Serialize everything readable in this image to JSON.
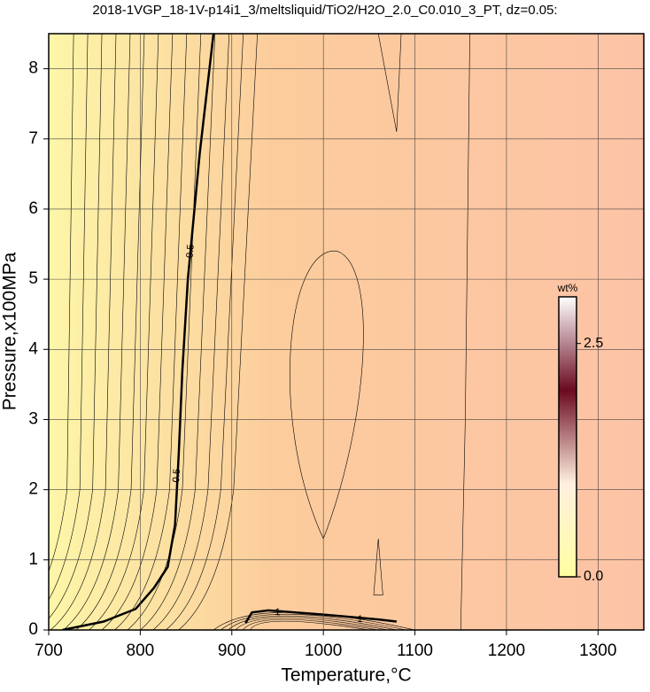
{
  "chart_data": {
    "type": "contour",
    "title": "2018-1VGP_18-1V-p14i1_3/meltsliquid/TiO2/H2O_2.0_C0.010_3_PT, dz=0.05:",
    "xlabel": "Temperature,°C",
    "ylabel": "Pressure,x100MPa",
    "xlim": [
      700,
      1350
    ],
    "ylim": [
      0,
      8.5
    ],
    "xticks": [
      700,
      800,
      900,
      1000,
      1100,
      1200,
      1300
    ],
    "yticks": [
      0,
      1,
      2,
      3,
      4,
      5,
      6,
      7,
      8
    ],
    "grid": true,
    "field_colors": [
      "#fdf6a8",
      "#fccc9c",
      "#fdc3a6"
    ],
    "contours": [
      {
        "level": 0.5,
        "label": "0.5",
        "x": [
          715,
          760,
          795,
          815,
          830,
          838,
          842,
          846,
          852,
          865,
          880
        ],
        "y": [
          0,
          0.12,
          0.3,
          0.6,
          0.9,
          1.5,
          2.5,
          3.7,
          5,
          6.8,
          8.5
        ]
      },
      {
        "level": 1,
        "label": "1",
        "x": [
          915,
          922,
          940,
          1000,
          1060,
          1080
        ],
        "y": [
          0.1,
          0.25,
          0.28,
          0.22,
          0.15,
          0.12
        ]
      }
    ],
    "colorbar": {
      "label": "wt%",
      "lim": [
        0,
        3.0
      ],
      "ticks": [
        {
          "value": 0,
          "label": "0.0"
        },
        2.5
      ],
      "colors": [
        "#ffffa0",
        "#fff0e0",
        "#6a0a20",
        "#ffffff"
      ]
    }
  }
}
